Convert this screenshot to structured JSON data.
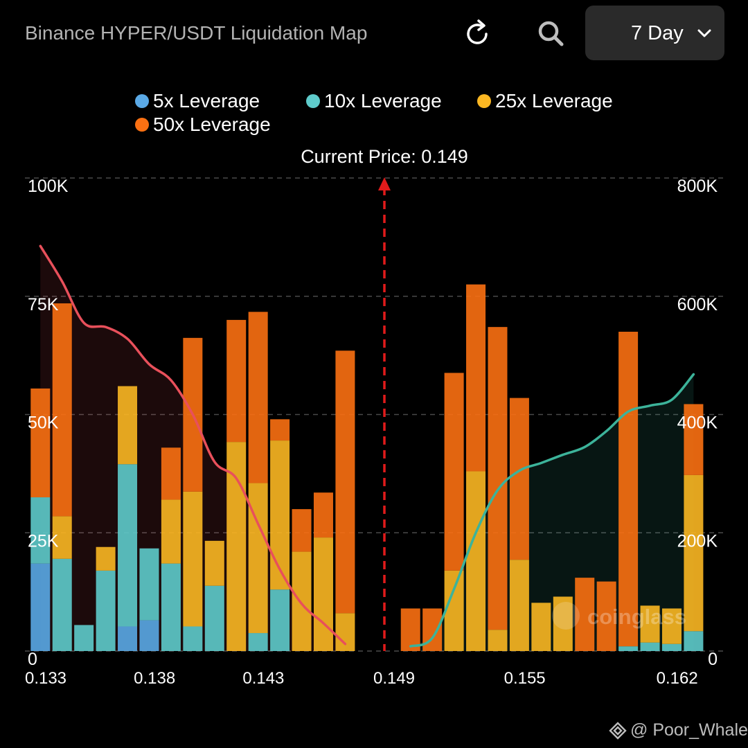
{
  "header": {
    "title": "Binance HYPER/USDT Liquidation Map",
    "period": "7 Day",
    "refresh_icon": "refresh-icon",
    "search_icon": "search-icon",
    "chevron_icon": "chevron-down-icon"
  },
  "legend": [
    {
      "label": "5x Leverage",
      "color": "#5aa9e6"
    },
    {
      "label": "10x Leverage",
      "color": "#5ecbcb"
    },
    {
      "label": "25x Leverage",
      "color": "#fbb722"
    },
    {
      "label": "50x Leverage",
      "color": "#fb7012"
    }
  ],
  "watermark": {
    "text": "@ Poor_Whale",
    "icon": "binance-square-icon",
    "chart_logo": "coinglass"
  },
  "chart_data": {
    "type": "bar",
    "title": "Current Price: 0.149",
    "current_price": 0.149,
    "x_ticks": [
      "0.133",
      "0.138",
      "0.143",
      "0.149",
      "0.155",
      "0.162"
    ],
    "left_axis": {
      "ticks": [
        "0",
        "25K",
        "50K",
        "75K",
        "100K"
      ],
      "ylim": [
        0,
        100000
      ]
    },
    "right_axis": {
      "ticks": [
        "0",
        "200K",
        "400K",
        "600K",
        "800K"
      ],
      "ylim": [
        0,
        800000
      ]
    },
    "grid": true,
    "legend_position": "top",
    "series_colors": {
      "5x": "#5aa9e6",
      "10x": "#5ecbcb",
      "25x": "#fbb722",
      "50x": "#fb7012"
    },
    "bars": [
      {
        "x": 0.1332,
        "5x": 18500,
        "10x": 14000,
        "25x": 0,
        "50x": 23000
      },
      {
        "x": 0.1342,
        "5x": 0,
        "10x": 19500,
        "25x": 9000,
        "50x": 45000
      },
      {
        "x": 0.1352,
        "5x": 0,
        "10x": 5500,
        "25x": 0,
        "50x": 0
      },
      {
        "x": 0.1362,
        "5x": 0,
        "10x": 17000,
        "25x": 5000,
        "50x": 0
      },
      {
        "x": 0.1372,
        "5x": 5200,
        "10x": 34300,
        "25x": 16500,
        "50x": 0
      },
      {
        "x": 0.1382,
        "5x": 6500,
        "10x": 15200,
        "25x": 0,
        "50x": 0
      },
      {
        "x": 0.1392,
        "5x": 0,
        "10x": 18500,
        "25x": 13500,
        "50x": 11000
      },
      {
        "x": 0.1402,
        "5x": 0,
        "10x": 5200,
        "25x": 28500,
        "50x": 32500
      },
      {
        "x": 0.1412,
        "5x": 0,
        "10x": 13800,
        "25x": 9500,
        "50x": 0
      },
      {
        "x": 0.1422,
        "5x": 0,
        "10x": 0,
        "25x": 44200,
        "50x": 25800
      },
      {
        "x": 0.1432,
        "5x": 0,
        "10x": 3800,
        "25x": 31700,
        "50x": 36200
      },
      {
        "x": 0.1442,
        "5x": 0,
        "10x": 13000,
        "25x": 31500,
        "50x": 4500
      },
      {
        "x": 0.1452,
        "5x": 0,
        "10x": 0,
        "25x": 21000,
        "50x": 9000
      },
      {
        "x": 0.1462,
        "5x": 0,
        "10x": 0,
        "25x": 24000,
        "50x": 9500
      },
      {
        "x": 0.1472,
        "5x": 0,
        "10x": 0,
        "25x": 8000,
        "50x": 55500
      },
      {
        "x": 0.1502,
        "5x": 0,
        "10x": 0,
        "25x": 0,
        "50x": 9000
      },
      {
        "x": 0.1512,
        "5x": 0,
        "10x": 0,
        "25x": 0,
        "50x": 9000
      },
      {
        "x": 0.1522,
        "5x": 0,
        "10x": 0,
        "25x": 17000,
        "50x": 41800
      },
      {
        "x": 0.1532,
        "5x": 0,
        "10x": 0,
        "25x": 38000,
        "50x": 39500
      },
      {
        "x": 0.1542,
        "5x": 0,
        "10x": 0,
        "25x": 4500,
        "50x": 64000
      },
      {
        "x": 0.1552,
        "5x": 0,
        "10x": 0,
        "25x": 19300,
        "50x": 34200
      },
      {
        "x": 0.1562,
        "5x": 0,
        "10x": 0,
        "25x": 10200,
        "50x": 0
      },
      {
        "x": 0.1572,
        "5x": 0,
        "10x": 0,
        "25x": 11500,
        "50x": 0
      },
      {
        "x": 0.1582,
        "5x": 0,
        "10x": 0,
        "25x": 0,
        "50x": 15500
      },
      {
        "x": 0.1592,
        "5x": 0,
        "10x": 0,
        "25x": 0,
        "50x": 14700
      },
      {
        "x": 0.1602,
        "5x": 0,
        "10x": 1000,
        "25x": 0,
        "50x": 66500
      },
      {
        "x": 0.1612,
        "5x": 0,
        "10x": 1800,
        "25x": 7800,
        "50x": 0
      },
      {
        "x": 0.1622,
        "5x": 0,
        "10x": 1500,
        "25x": 7500,
        "50x": 0
      },
      {
        "x": 0.1632,
        "5x": 0,
        "10x": 4200,
        "25x": 33000,
        "50x": 15000
      }
    ],
    "cumulative_short": {
      "color": "#e8505b",
      "points": [
        [
          0.1332,
          685000
        ],
        [
          0.1342,
          625000
        ],
        [
          0.1352,
          555000
        ],
        [
          0.1362,
          548000
        ],
        [
          0.1372,
          528000
        ],
        [
          0.1382,
          485000
        ],
        [
          0.1392,
          458000
        ],
        [
          0.1402,
          400000
        ],
        [
          0.1412,
          320000
        ],
        [
          0.1422,
          292000
        ],
        [
          0.1432,
          215000
        ],
        [
          0.1442,
          138000
        ],
        [
          0.1452,
          80000
        ],
        [
          0.1462,
          47000
        ],
        [
          0.1472,
          12000
        ]
      ]
    },
    "cumulative_long": {
      "color": "#3cb39a",
      "points": [
        [
          0.1502,
          8000
        ],
        [
          0.1512,
          22000
        ],
        [
          0.1522,
          105000
        ],
        [
          0.1532,
          200000
        ],
        [
          0.1542,
          272000
        ],
        [
          0.1552,
          305000
        ],
        [
          0.1562,
          318000
        ],
        [
          0.1572,
          332000
        ],
        [
          0.1582,
          345000
        ],
        [
          0.1592,
          372000
        ],
        [
          0.1602,
          405000
        ],
        [
          0.1612,
          415000
        ],
        [
          0.1622,
          425000
        ],
        [
          0.1632,
          468000
        ]
      ]
    }
  }
}
